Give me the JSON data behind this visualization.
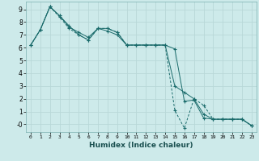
{
  "xlabel": "Humidex (Indice chaleur)",
  "bg_color": "#cdeaea",
  "grid_color": "#b8d8d8",
  "line_color": "#1a6b6b",
  "xlim": [
    -0.5,
    23.5
  ],
  "ylim": [
    -0.6,
    9.6
  ],
  "xticks": [
    0,
    1,
    2,
    3,
    4,
    5,
    6,
    7,
    8,
    9,
    10,
    11,
    12,
    13,
    14,
    15,
    16,
    17,
    18,
    19,
    20,
    21,
    22,
    23
  ],
  "yticks": [
    0,
    1,
    2,
    3,
    4,
    5,
    6,
    7,
    8,
    9
  ],
  "line1_x": [
    0,
    1,
    2,
    3,
    4,
    5,
    6,
    7,
    8,
    9,
    10,
    11,
    12,
    13,
    14,
    15,
    16,
    17,
    18,
    19,
    20,
    21,
    22,
    23
  ],
  "line1_y": [
    6.2,
    7.4,
    9.2,
    8.5,
    7.6,
    7.2,
    6.8,
    7.5,
    7.3,
    7.0,
    6.2,
    6.2,
    6.2,
    6.2,
    6.2,
    5.9,
    1.8,
    1.9,
    0.5,
    0.4,
    0.4,
    0.4,
    0.4,
    -0.1
  ],
  "line2_x": [
    0,
    1,
    2,
    3,
    4,
    5,
    6,
    7,
    8,
    9,
    10,
    11,
    12,
    13,
    14,
    15,
    16,
    17,
    18,
    19,
    20,
    21,
    22,
    23
  ],
  "line2_y": [
    6.2,
    7.4,
    9.2,
    8.5,
    7.7,
    7.0,
    6.6,
    7.5,
    7.5,
    7.2,
    6.2,
    6.2,
    6.2,
    6.2,
    6.2,
    3.0,
    2.5,
    2.0,
    0.8,
    0.4,
    0.4,
    0.4,
    0.4,
    -0.1
  ],
  "line3_x": [
    0,
    1,
    2,
    3,
    4,
    5,
    6,
    7,
    8,
    9,
    10,
    11,
    12,
    13,
    14,
    15,
    16,
    17,
    18,
    19,
    20,
    21,
    22,
    23
  ],
  "line3_y": [
    6.2,
    7.4,
    9.2,
    8.4,
    7.5,
    7.0,
    6.6,
    7.5,
    7.5,
    7.2,
    6.2,
    6.2,
    6.2,
    6.2,
    6.2,
    1.1,
    -0.3,
    2.0,
    1.5,
    0.4,
    0.4,
    0.4,
    0.4,
    -0.1
  ]
}
